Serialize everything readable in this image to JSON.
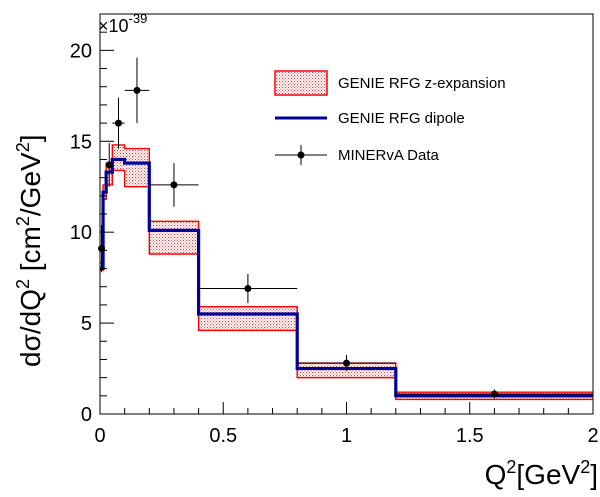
{
  "chart_data": {
    "type": "line",
    "title": "",
    "xlabel_main": "Q",
    "xlabel_sup1": "2",
    "xlabel_mid": "[GeV",
    "xlabel_sup2": "2",
    "xlabel_end": "]",
    "ylabel_main": "dσ/dQ",
    "ylabel_sup1": "2",
    "ylabel_mid": " [cm",
    "ylabel_sup2": "2",
    "ylabel_mid2": "/GeV",
    "ylabel_sup3": "2",
    "ylabel_end": "]",
    "y_scale_label": "×10",
    "y_scale_exp": "-39",
    "xlim": [
      0,
      2
    ],
    "ylim": [
      0,
      22
    ],
    "x_ticks": [
      {
        "value": 0,
        "label": "0"
      },
      {
        "value": 0.5,
        "label": "0.5"
      },
      {
        "value": 1,
        "label": "1"
      },
      {
        "value": 1.5,
        "label": "1.5"
      },
      {
        "value": 2,
        "label": "2"
      }
    ],
    "y_ticks": [
      {
        "value": 0,
        "label": "0"
      },
      {
        "value": 5,
        "label": "5"
      },
      {
        "value": 10,
        "label": "10"
      },
      {
        "value": 15,
        "label": "15"
      },
      {
        "value": 20,
        "label": "20"
      }
    ],
    "bin_edges": [
      0,
      0.0125,
      0.025,
      0.05,
      0.1,
      0.2,
      0.4,
      0.8,
      1.2,
      2.0
    ],
    "series": [
      {
        "name": "GENIE RFG z-expansion",
        "style": "band",
        "color": "#ff0000",
        "fill": "#e06060",
        "low": [
          7.9,
          11.8,
          12.6,
          13.4,
          12.5,
          8.8,
          4.6,
          2.0,
          0.8
        ],
        "high": [
          8.3,
          12.6,
          13.8,
          14.8,
          14.6,
          10.6,
          5.9,
          2.8,
          1.2
        ]
      },
      {
        "name": "GENIE RFG dipole",
        "style": "step",
        "color": "#000099",
        "values": [
          8.0,
          12.2,
          13.3,
          14.0,
          13.8,
          10.1,
          5.5,
          2.5,
          1.0
        ]
      },
      {
        "name": "MINERvA Data",
        "style": "points",
        "color": "#000000",
        "points": [
          {
            "x": 0.00625,
            "y": 9.1,
            "xerr": 0.00625,
            "yerr": 1.3
          },
          {
            "x": 0.0375,
            "y": 13.7,
            "xerr": 0.0125,
            "yerr": 1.2
          },
          {
            "x": 0.075,
            "y": 16.0,
            "xerr": 0.025,
            "yerr": 1.4
          },
          {
            "x": 0.15,
            "y": 17.8,
            "xerr": 0.05,
            "yerr": 1.8
          },
          {
            "x": 0.3,
            "y": 12.6,
            "xerr": 0.1,
            "yerr": 1.2
          },
          {
            "x": 0.6,
            "y": 6.9,
            "xerr": 0.2,
            "yerr": 0.8
          },
          {
            "x": 1.0,
            "y": 2.8,
            "xerr": 0.2,
            "yerr": 0.45
          },
          {
            "x": 1.6,
            "y": 1.1,
            "xerr": 0.4,
            "yerr": 0.25
          }
        ]
      }
    ],
    "legend": {
      "placement": "top-right",
      "entries": [
        "GENIE RFG z-expansion",
        "GENIE RFG dipole",
        "MINERvA Data"
      ]
    }
  }
}
